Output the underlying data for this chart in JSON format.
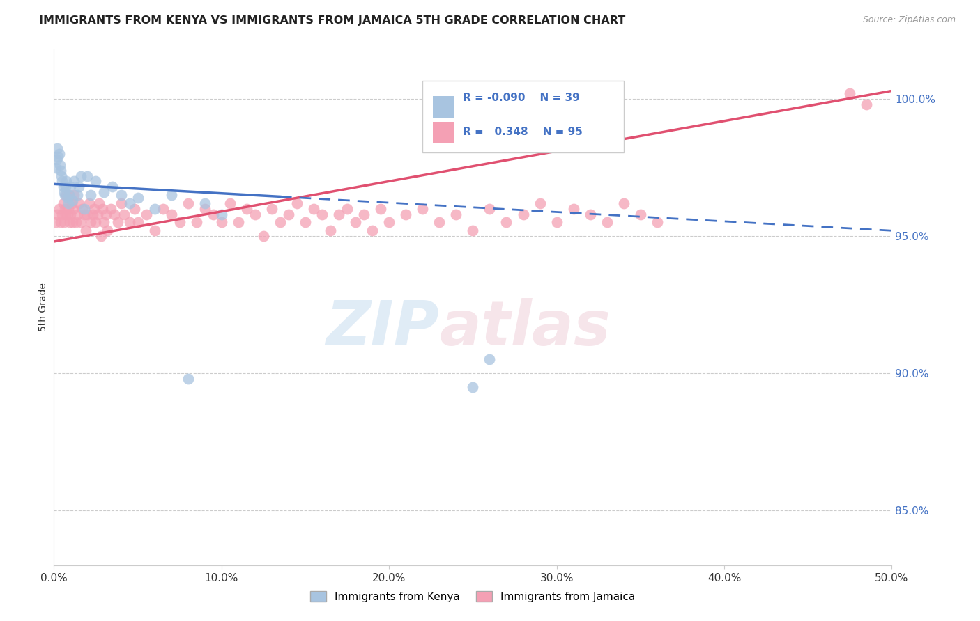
{
  "title": "IMMIGRANTS FROM KENYA VS IMMIGRANTS FROM JAMAICA 5TH GRADE CORRELATION CHART",
  "source": "Source: ZipAtlas.com",
  "ylabel": "5th Grade",
  "xlim": [
    0.0,
    50.0
  ],
  "ylim": [
    83.0,
    101.8
  ],
  "y_ticks": [
    85.0,
    90.0,
    95.0,
    100.0
  ],
  "x_ticks": [
    0.0,
    10.0,
    20.0,
    30.0,
    40.0,
    50.0
  ],
  "kenya_R": -0.09,
  "kenya_N": 39,
  "jamaica_R": 0.348,
  "jamaica_N": 95,
  "kenya_color": "#a8c4e0",
  "jamaica_color": "#f4a0b4",
  "kenya_line_color": "#4472c4",
  "jamaica_line_color": "#e05070",
  "watermark_zip": "ZIP",
  "watermark_atlas": "atlas",
  "kenya_line_x0": 0.0,
  "kenya_line_y0": 96.9,
  "kenya_line_x1": 50.0,
  "kenya_line_y1": 95.2,
  "kenya_solid_end_x": 13.5,
  "jamaica_line_x0": 0.0,
  "jamaica_line_y0": 94.8,
  "jamaica_line_x1": 50.0,
  "jamaica_line_y1": 100.3,
  "kenya_scatter_x": [
    0.1,
    0.15,
    0.2,
    0.25,
    0.3,
    0.35,
    0.4,
    0.45,
    0.5,
    0.55,
    0.6,
    0.65,
    0.7,
    0.75,
    0.8,
    0.85,
    0.9,
    1.0,
    1.1,
    1.2,
    1.4,
    1.5,
    1.6,
    1.8,
    2.0,
    2.2,
    2.5,
    3.0,
    3.5,
    4.0,
    4.5,
    5.0,
    6.0,
    7.0,
    8.0,
    9.0,
    10.0,
    25.0,
    26.0
  ],
  "kenya_scatter_y": [
    97.5,
    97.8,
    98.2,
    97.9,
    98.0,
    97.6,
    97.4,
    97.2,
    97.0,
    96.8,
    96.6,
    96.5,
    96.8,
    97.0,
    96.4,
    96.2,
    96.5,
    96.8,
    96.3,
    97.0,
    96.5,
    96.8,
    97.2,
    96.0,
    97.2,
    96.5,
    97.0,
    96.6,
    96.8,
    96.5,
    96.2,
    96.4,
    96.0,
    96.5,
    89.8,
    96.2,
    95.8,
    89.5,
    90.5
  ],
  "jamaica_scatter_x": [
    0.1,
    0.2,
    0.3,
    0.4,
    0.5,
    0.55,
    0.6,
    0.65,
    0.7,
    0.75,
    0.8,
    0.85,
    0.9,
    0.95,
    1.0,
    1.05,
    1.1,
    1.15,
    1.2,
    1.3,
    1.4,
    1.5,
    1.6,
    1.7,
    1.8,
    1.9,
    2.0,
    2.1,
    2.2,
    2.3,
    2.4,
    2.5,
    2.6,
    2.7,
    2.8,
    2.9,
    3.0,
    3.1,
    3.2,
    3.4,
    3.6,
    3.8,
    4.0,
    4.2,
    4.5,
    4.8,
    5.0,
    5.5,
    6.0,
    6.5,
    7.0,
    7.5,
    8.0,
    8.5,
    9.0,
    9.5,
    10.0,
    10.5,
    11.0,
    11.5,
    12.0,
    12.5,
    13.0,
    13.5,
    14.0,
    14.5,
    15.0,
    15.5,
    16.0,
    16.5,
    17.0,
    17.5,
    18.0,
    18.5,
    19.0,
    19.5,
    20.0,
    21.0,
    22.0,
    23.0,
    24.0,
    25.0,
    26.0,
    27.0,
    28.0,
    29.0,
    30.0,
    31.0,
    32.0,
    33.0,
    34.0,
    35.0,
    36.0,
    47.5,
    48.5
  ],
  "jamaica_scatter_y": [
    95.5,
    95.8,
    96.0,
    95.5,
    95.8,
    96.2,
    95.5,
    96.0,
    95.8,
    96.5,
    95.8,
    96.0,
    96.5,
    95.5,
    95.8,
    96.2,
    95.5,
    96.0,
    96.5,
    95.5,
    95.8,
    96.2,
    95.5,
    96.0,
    95.8,
    95.2,
    95.8,
    96.2,
    95.5,
    95.8,
    96.0,
    95.5,
    95.8,
    96.2,
    95.0,
    96.0,
    95.5,
    95.8,
    95.2,
    96.0,
    95.8,
    95.5,
    96.2,
    95.8,
    95.5,
    96.0,
    95.5,
    95.8,
    95.2,
    96.0,
    95.8,
    95.5,
    96.2,
    95.5,
    96.0,
    95.8,
    95.5,
    96.2,
    95.5,
    96.0,
    95.8,
    95.0,
    96.0,
    95.5,
    95.8,
    96.2,
    95.5,
    96.0,
    95.8,
    95.2,
    95.8,
    96.0,
    95.5,
    95.8,
    95.2,
    96.0,
    95.5,
    95.8,
    96.0,
    95.5,
    95.8,
    95.2,
    96.0,
    95.5,
    95.8,
    96.2,
    95.5,
    96.0,
    95.8,
    95.5,
    96.2,
    95.8,
    95.5,
    100.2,
    99.8
  ]
}
